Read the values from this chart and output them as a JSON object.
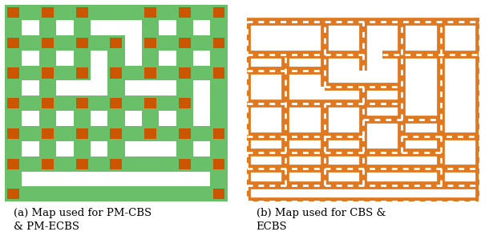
{
  "fig_width": 6.1,
  "fig_height": 3.14,
  "dpi": 100,
  "bg_color": "#ffffff",
  "caption_a": "(a) Map used for PM-CBS\n& PM-ECBS",
  "caption_b": "(b) Map used for CBS &\nECBS",
  "caption_fontsize": 9.5,
  "green": "#6abf69",
  "orange": "#d4691e",
  "orange_b": "#e07820",
  "white": "#ffffff",
  "black": "#000000",
  "map_black": "#0a0a0a",
  "node_color": "#cc5500"
}
